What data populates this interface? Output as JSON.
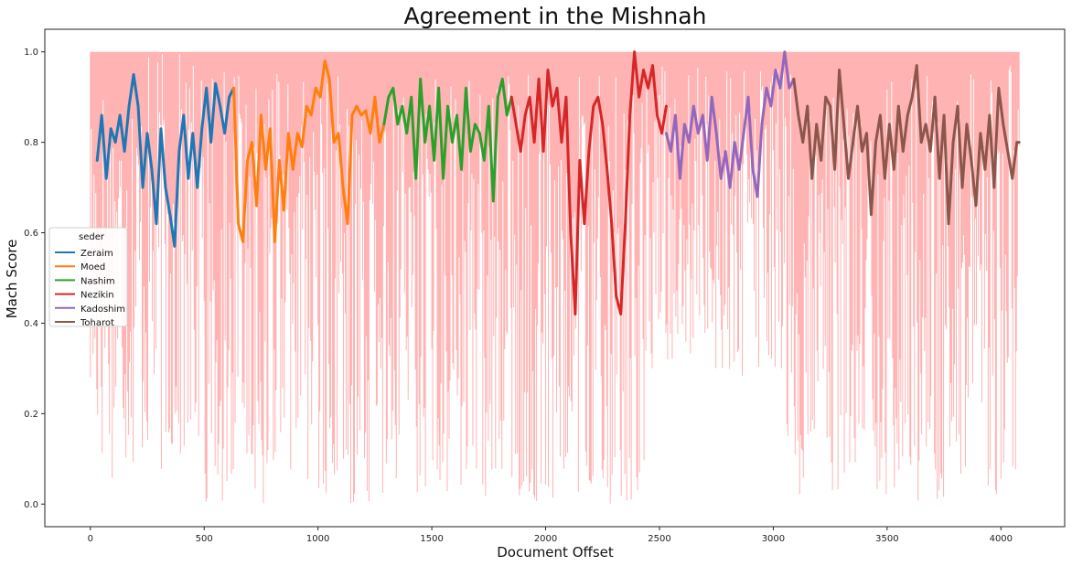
{
  "chart_data": {
    "type": "line",
    "title": "Agreement in the Mishnah",
    "xlabel": "Document Offset",
    "ylabel": "Mach Score",
    "xlim": [
      -200,
      4280
    ],
    "ylim": [
      -0.05,
      1.05
    ],
    "x_ticks": [
      0,
      500,
      1000,
      1500,
      2000,
      2500,
      3000,
      3500,
      4000
    ],
    "y_ticks": [
      0.0,
      0.2,
      0.4,
      0.6,
      0.8,
      1.0
    ],
    "grid": false,
    "legend": {
      "title": "seder",
      "placement": "center-left"
    },
    "raw_score_series": {
      "color": "#ffb3b3",
      "x_start": 0,
      "x_end": 4080,
      "description_visible": false
    },
    "series": [
      {
        "name": "Zeraim",
        "color": "#1f77b4",
        "x": [
          30,
          50,
          70,
          90,
          110,
          130,
          150,
          170,
          190,
          210,
          230,
          250,
          270,
          290,
          310,
          330,
          350,
          370,
          390,
          410,
          430,
          450,
          470,
          490,
          510,
          530,
          550,
          570,
          590,
          610,
          630
        ],
        "y": [
          0.76,
          0.86,
          0.72,
          0.83,
          0.8,
          0.86,
          0.78,
          0.88,
          0.95,
          0.88,
          0.7,
          0.82,
          0.74,
          0.62,
          0.83,
          0.7,
          0.64,
          0.57,
          0.78,
          0.86,
          0.72,
          0.82,
          0.7,
          0.83,
          0.92,
          0.8,
          0.93,
          0.88,
          0.82,
          0.9,
          0.92
        ]
      },
      {
        "name": "Moed",
        "color": "#ff7f0e",
        "x": [
          630,
          650,
          670,
          690,
          710,
          730,
          750,
          770,
          790,
          810,
          830,
          850,
          870,
          890,
          910,
          930,
          950,
          970,
          990,
          1010,
          1030,
          1050,
          1070,
          1090,
          1110,
          1130,
          1150,
          1170,
          1190,
          1210,
          1230,
          1250,
          1270,
          1290
        ],
        "y": [
          0.92,
          0.62,
          0.58,
          0.76,
          0.8,
          0.66,
          0.86,
          0.74,
          0.83,
          0.58,
          0.76,
          0.65,
          0.82,
          0.74,
          0.82,
          0.79,
          0.88,
          0.86,
          0.92,
          0.9,
          0.98,
          0.94,
          0.8,
          0.82,
          0.7,
          0.62,
          0.86,
          0.88,
          0.86,
          0.87,
          0.82,
          0.9,
          0.8,
          0.84
        ]
      },
      {
        "name": "Nashim",
        "color": "#2ca02c",
        "x": [
          1290,
          1310,
          1330,
          1350,
          1370,
          1390,
          1410,
          1430,
          1450,
          1470,
          1490,
          1510,
          1530,
          1550,
          1570,
          1590,
          1610,
          1630,
          1650,
          1670,
          1690,
          1710,
          1730,
          1750,
          1770,
          1790,
          1810,
          1830,
          1850
        ],
        "y": [
          0.84,
          0.9,
          0.92,
          0.84,
          0.88,
          0.82,
          0.9,
          0.72,
          0.94,
          0.8,
          0.88,
          0.76,
          0.92,
          0.72,
          0.88,
          0.8,
          0.86,
          0.74,
          0.92,
          0.78,
          0.84,
          0.82,
          0.76,
          0.88,
          0.67,
          0.9,
          0.94,
          0.86,
          0.9
        ]
      },
      {
        "name": "Nezikin",
        "color": "#d62728",
        "x": [
          1850,
          1870,
          1890,
          1910,
          1930,
          1950,
          1970,
          1990,
          2010,
          2030,
          2050,
          2070,
          2090,
          2110,
          2130,
          2150,
          2170,
          2190,
          2210,
          2230,
          2250,
          2270,
          2290,
          2310,
          2330,
          2350,
          2370,
          2390,
          2410,
          2430,
          2450,
          2470,
          2490,
          2510,
          2530
        ],
        "y": [
          0.9,
          0.84,
          0.78,
          0.86,
          0.9,
          0.8,
          0.94,
          0.78,
          0.96,
          0.88,
          0.92,
          0.8,
          0.9,
          0.6,
          0.42,
          0.76,
          0.62,
          0.78,
          0.88,
          0.9,
          0.84,
          0.74,
          0.62,
          0.46,
          0.42,
          0.62,
          0.86,
          1.0,
          0.9,
          0.96,
          0.92,
          0.97,
          0.86,
          0.82,
          0.88
        ]
      },
      {
        "name": "Kadoshim",
        "color": "#9467bd",
        "x": [
          2530,
          2550,
          2570,
          2590,
          2610,
          2630,
          2650,
          2670,
          2690,
          2710,
          2730,
          2750,
          2770,
          2790,
          2810,
          2830,
          2850,
          2870,
          2890,
          2910,
          2930,
          2950,
          2970,
          2990,
          3010,
          3030,
          3050,
          3070,
          3090
        ],
        "y": [
          0.82,
          0.78,
          0.86,
          0.72,
          0.84,
          0.8,
          0.88,
          0.82,
          0.86,
          0.76,
          0.9,
          0.82,
          0.72,
          0.78,
          0.7,
          0.8,
          0.74,
          0.82,
          0.9,
          0.74,
          0.68,
          0.84,
          0.92,
          0.88,
          0.96,
          0.92,
          1.0,
          0.92,
          0.94
        ]
      },
      {
        "name": "Toharot",
        "color": "#8c564b",
        "x": [
          3090,
          3110,
          3130,
          3150,
          3170,
          3190,
          3210,
          3230,
          3250,
          3270,
          3290,
          3310,
          3330,
          3350,
          3370,
          3390,
          3410,
          3430,
          3450,
          3470,
          3490,
          3510,
          3530,
          3550,
          3570,
          3590,
          3610,
          3630,
          3650,
          3670,
          3690,
          3710,
          3730,
          3750,
          3770,
          3790,
          3810,
          3830,
          3850,
          3870,
          3890,
          3910,
          3930,
          3950,
          3970,
          3990,
          4010,
          4030,
          4050,
          4070,
          4080
        ],
        "y": [
          0.94,
          0.86,
          0.8,
          0.88,
          0.72,
          0.84,
          0.76,
          0.9,
          0.88,
          0.74,
          0.96,
          0.84,
          0.72,
          0.8,
          0.88,
          0.78,
          0.82,
          0.64,
          0.8,
          0.86,
          0.72,
          0.84,
          0.74,
          0.88,
          0.78,
          0.86,
          0.9,
          0.97,
          0.8,
          0.84,
          0.78,
          0.9,
          0.72,
          0.86,
          0.62,
          0.8,
          0.88,
          0.7,
          0.84,
          0.76,
          0.66,
          0.82,
          0.74,
          0.86,
          0.7,
          0.92,
          0.84,
          0.78,
          0.72,
          0.8,
          0.8
        ]
      }
    ]
  }
}
